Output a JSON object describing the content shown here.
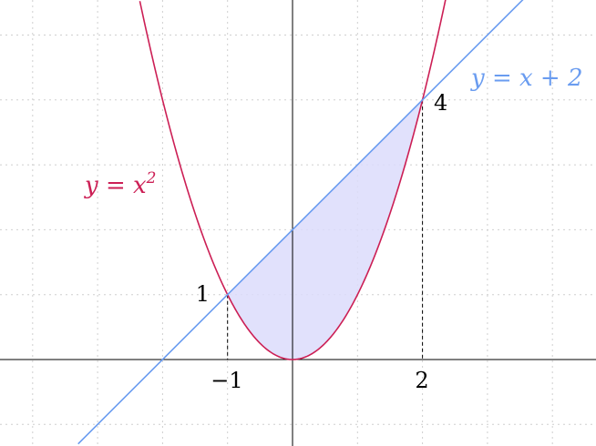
{
  "chart_data": {
    "type": "line",
    "xlim": [
      -4.5,
      4.6
    ],
    "ylim": [
      -1,
      5.5
    ],
    "grid": true,
    "series": [
      {
        "name": "y = x²",
        "label_main": "y = x",
        "label_exp": "2",
        "color": "#cc1f55",
        "func": "x^2"
      },
      {
        "name": "y = x + 2",
        "label_main": "y = x + 2",
        "color": "#6a9cf0",
        "func": "x+2"
      }
    ],
    "shaded_region": {
      "between": [
        "x + 2",
        "x^2"
      ],
      "x_from": -1,
      "x_to": 2,
      "color": "#dcdcfc"
    },
    "intersections": [
      {
        "x": -1,
        "y": 1
      },
      {
        "x": 2,
        "y": 4
      }
    ],
    "x_tick_labels": [
      {
        "x": -1,
        "text": "−1"
      },
      {
        "x": 2,
        "text": "2"
      }
    ],
    "y_tick_labels": [
      {
        "y": 1,
        "text": "1"
      },
      {
        "y": 4,
        "text": "4"
      }
    ]
  }
}
